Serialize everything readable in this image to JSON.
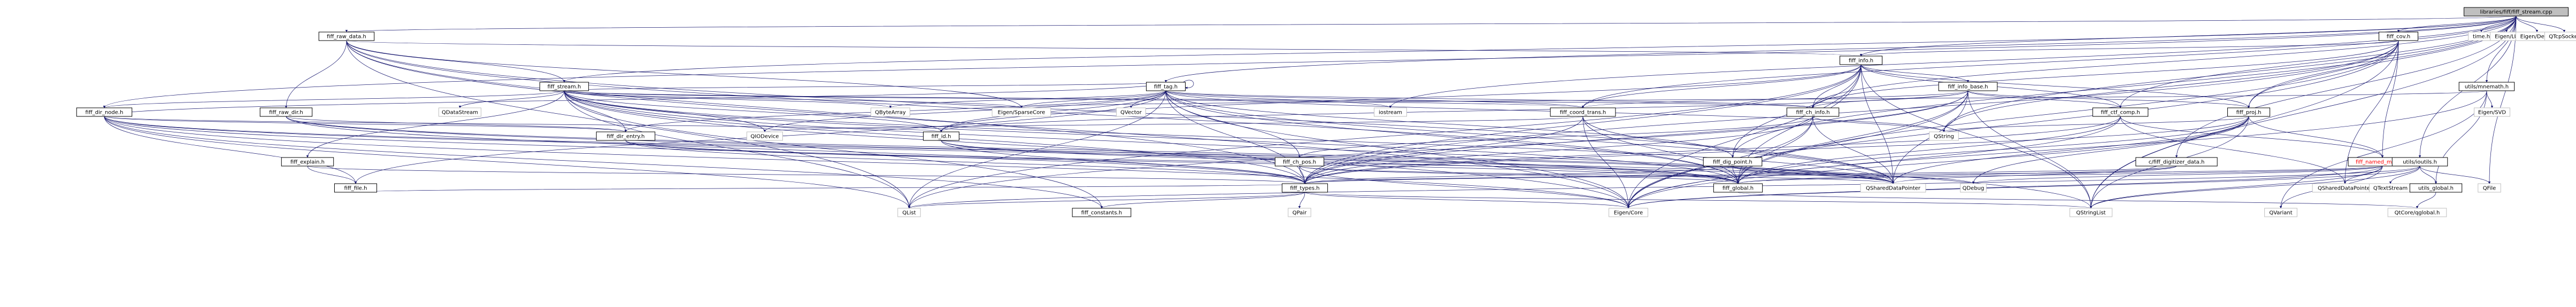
{
  "diagram": {
    "nodes": [
      {
        "id": "root",
        "label": "libraries/fiff/fiff_stream.cpp",
        "kind": "root"
      },
      {
        "id": "fiff_raw_data_h",
        "label": "fiff_raw_data.h",
        "kind": "inc"
      },
      {
        "id": "fiff_cov_h",
        "label": "fiff_cov.h",
        "kind": "inc"
      },
      {
        "id": "time_h",
        "label": "time.h",
        "kind": "ext"
      },
      {
        "id": "eigen_lu",
        "label": "Eigen/LU",
        "kind": "ext"
      },
      {
        "id": "eigen_dense",
        "label": "Eigen/Dense",
        "kind": "ext"
      },
      {
        "id": "qtcpsocket",
        "label": "QTcpSocket",
        "kind": "ext"
      },
      {
        "id": "fiff_info_h",
        "label": "fiff_info.h",
        "kind": "inc"
      },
      {
        "id": "fiff_stream_h",
        "label": "fiff_stream.h",
        "kind": "inc"
      },
      {
        "id": "fiff_tag_h",
        "label": "fiff_tag.h",
        "kind": "inc"
      },
      {
        "id": "fiff_info_base_h",
        "label": "fiff_info_base.h",
        "kind": "inc"
      },
      {
        "id": "utils_mnemath_h",
        "label": "utils/mnemath.h",
        "kind": "inc"
      },
      {
        "id": "fiff_dir_node_h",
        "label": "fiff_dir_node.h",
        "kind": "inc"
      },
      {
        "id": "fiff_raw_dir_h",
        "label": "fiff_raw_dir.h",
        "kind": "inc"
      },
      {
        "id": "qdatastream",
        "label": "QDataStream",
        "kind": "ext"
      },
      {
        "id": "qbytearray",
        "label": "QByteArray",
        "kind": "ext"
      },
      {
        "id": "eigen_sparsecore",
        "label": "Eigen/SparseCore",
        "kind": "ext"
      },
      {
        "id": "qvector",
        "label": "QVector",
        "kind": "ext"
      },
      {
        "id": "iostream",
        "label": "iostream",
        "kind": "ext"
      },
      {
        "id": "fiff_coord_trans_h",
        "label": "fiff_coord_trans.h",
        "kind": "inc"
      },
      {
        "id": "fiff_ch_info_h",
        "label": "fiff_ch_info.h",
        "kind": "inc"
      },
      {
        "id": "fiff_ctf_comp_h",
        "label": "fiff_ctf_comp.h",
        "kind": "inc"
      },
      {
        "id": "fiff_proj_h",
        "label": "fiff_proj.h",
        "kind": "inc"
      },
      {
        "id": "eigen_svd",
        "label": "Eigen/SVD",
        "kind": "ext"
      },
      {
        "id": "fiff_dir_entry_h",
        "label": "fiff_dir_entry.h",
        "kind": "inc"
      },
      {
        "id": "qiodevice",
        "label": "QIODevice",
        "kind": "ext"
      },
      {
        "id": "fiff_id_h",
        "label": "fiff_id.h",
        "kind": "inc"
      },
      {
        "id": "qstring",
        "label": "QString",
        "kind": "ext"
      },
      {
        "id": "fiff_ch_pos_h",
        "label": "fiff_ch_pos.h",
        "kind": "inc"
      },
      {
        "id": "fiff_dig_point_h",
        "label": "fiff_dig_point.h",
        "kind": "inc"
      },
      {
        "id": "fiff_named_matrix_h",
        "label": "fiff_named_matrix.h",
        "kind": "inc",
        "red": true
      },
      {
        "id": "c_fiff_digitizer_data_h",
        "label": "c/fiff_digitizer_data.h",
        "kind": "inc"
      },
      {
        "id": "utils_ioutils_h",
        "label": "utils/ioutils.h",
        "kind": "inc"
      },
      {
        "id": "fiff_explain_h",
        "label": "fiff_explain.h",
        "kind": "inc"
      },
      {
        "id": "fiff_file_h",
        "label": "fiff_file.h",
        "kind": "inc"
      },
      {
        "id": "fiff_types_h",
        "label": "fiff_types.h",
        "kind": "inc"
      },
      {
        "id": "fiff_global_h",
        "label": "fiff_global.h",
        "kind": "inc"
      },
      {
        "id": "qshareddatapointer",
        "label": "QSharedDataPointer",
        "kind": "ext"
      },
      {
        "id": "qshareddatapointer2",
        "label": "QSharedDataPointer",
        "kind": "ext"
      },
      {
        "id": "qdebug",
        "label": "QDebug",
        "kind": "ext"
      },
      {
        "id": "qtextstream",
        "label": "QTextStream",
        "kind": "ext"
      },
      {
        "id": "utils_global_h",
        "label": "utils_global.h",
        "kind": "inc"
      },
      {
        "id": "qfile",
        "label": "QFile",
        "kind": "ext"
      },
      {
        "id": "qlist",
        "label": "QList",
        "kind": "ext"
      },
      {
        "id": "qpair",
        "label": "QPair",
        "kind": "ext"
      },
      {
        "id": "fiff_constants_h",
        "label": "fiff_constants.h",
        "kind": "inc"
      },
      {
        "id": "eigen_core",
        "label": "Eigen/Core",
        "kind": "ext"
      },
      {
        "id": "qstringlist",
        "label": "QStringList",
        "kind": "ext"
      },
      {
        "id": "qvariant",
        "label": "QVariant",
        "kind": "ext"
      },
      {
        "id": "qtcoreglobal_h",
        "label": "QtCore/qglobal.h",
        "kind": "ext"
      }
    ],
    "edges": [
      [
        "root",
        "fiff_raw_data_h"
      ],
      [
        "root",
        "fiff_cov_h"
      ],
      [
        "root",
        "time_h"
      ],
      [
        "root",
        "eigen_lu"
      ],
      [
        "root",
        "eigen_dense"
      ],
      [
        "root",
        "qtcpsocket"
      ],
      [
        "root",
        "fiff_info_h"
      ],
      [
        "root",
        "fiff_stream_h"
      ],
      [
        "root",
        "fiff_tag_h"
      ],
      [
        "root",
        "utils_mnemath_h"
      ],
      [
        "root",
        "fiff_dir_node_h"
      ],
      [
        "root",
        "iostream"
      ],
      [
        "root",
        "fiff_coord_trans_h"
      ],
      [
        "root",
        "fiff_ch_info_h"
      ],
      [
        "root",
        "fiff_ctf_comp_h"
      ],
      [
        "root",
        "fiff_proj_h"
      ],
      [
        "root",
        "utils_ioutils_h"
      ],
      [
        "root",
        "c_fiff_digitizer_data_h"
      ],
      [
        "root",
        "fiff_dig_point_h"
      ],
      [
        "root",
        "qstring"
      ],
      [
        "root",
        "qfile"
      ],
      [
        "root",
        "qstringlist"
      ],
      [
        "fiff_raw_data_h",
        "fiff_info_h"
      ],
      [
        "fiff_raw_data_h",
        "fiff_stream_h"
      ],
      [
        "fiff_raw_data_h",
        "fiff_raw_dir_h"
      ],
      [
        "fiff_raw_data_h",
        "fiff_types_h"
      ],
      [
        "fiff_raw_data_h",
        "fiff_global_h"
      ],
      [
        "fiff_raw_data_h",
        "qlist"
      ],
      [
        "fiff_raw_data_h",
        "eigen_core"
      ],
      [
        "fiff_raw_data_h",
        "qshareddatapointer"
      ],
      [
        "fiff_raw_data_h",
        "eigen_sparsecore"
      ],
      [
        "fiff_cov_h",
        "fiff_info_h"
      ],
      [
        "fiff_cov_h",
        "fiff_proj_h"
      ],
      [
        "fiff_cov_h",
        "fiff_types_h"
      ],
      [
        "fiff_cov_h",
        "fiff_global_h"
      ],
      [
        "fiff_cov_h",
        "fiff_named_matrix_h"
      ],
      [
        "fiff_cov_h",
        "eigen_core"
      ],
      [
        "fiff_cov_h",
        "qstringlist"
      ],
      [
        "fiff_cov_h",
        "qshareddatapointer2"
      ],
      [
        "fiff_cov_h",
        "qstring"
      ],
      [
        "fiff_cov_h",
        "fiff_ch_info_h"
      ],
      [
        "fiff_info_h",
        "fiff_info_base_h"
      ],
      [
        "fiff_info_h",
        "fiff_coord_trans_h"
      ],
      [
        "fiff_info_h",
        "fiff_ch_info_h"
      ],
      [
        "fiff_info_h",
        "fiff_ctf_comp_h"
      ],
      [
        "fiff_info_h",
        "fiff_proj_h"
      ],
      [
        "fiff_info_h",
        "fiff_dig_point_h"
      ],
      [
        "fiff_info_h",
        "fiff_id_h"
      ],
      [
        "fiff_info_h",
        "fiff_types_h"
      ],
      [
        "fiff_info_h",
        "fiff_global_h"
      ],
      [
        "fiff_info_h",
        "qstringlist"
      ],
      [
        "fiff_info_h",
        "qshareddatapointer"
      ],
      [
        "fiff_info_h",
        "eigen_core"
      ],
      [
        "fiff_info_h",
        "qlist"
      ],
      [
        "fiff_stream_h",
        "fiff_tag_h"
      ],
      [
        "fiff_stream_h",
        "fiff_dir_node_h"
      ],
      [
        "fiff_stream_h",
        "fiff_dir_entry_h"
      ],
      [
        "fiff_stream_h",
        "fiff_id_h"
      ],
      [
        "fiff_stream_h",
        "fiff_types_h"
      ],
      [
        "fiff_stream_h",
        "fiff_global_h"
      ],
      [
        "fiff_stream_h",
        "qdatastream"
      ],
      [
        "fiff_stream_h",
        "qbytearray"
      ],
      [
        "fiff_stream_h",
        "qiodevice"
      ],
      [
        "fiff_stream_h",
        "eigen_core"
      ],
      [
        "fiff_stream_h",
        "eigen_sparsecore"
      ],
      [
        "fiff_stream_h",
        "qlist"
      ],
      [
        "fiff_stream_h",
        "qstringlist"
      ],
      [
        "fiff_stream_h",
        "qshareddatapointer"
      ],
      [
        "fiff_stream_h",
        "fiff_coord_trans_h"
      ],
      [
        "fiff_stream_h",
        "fiff_ch_info_h"
      ],
      [
        "fiff_stream_h",
        "fiff_explain_h"
      ],
      [
        "fiff_stream_h",
        "fiff_constants_h"
      ],
      [
        "fiff_tag_h",
        "fiff_tag_h"
      ],
      [
        "fiff_tag_h",
        "fiff_coord_trans_h"
      ],
      [
        "fiff_tag_h",
        "fiff_ch_info_h"
      ],
      [
        "fiff_tag_h",
        "fiff_dig_point_h"
      ],
      [
        "fiff_tag_h",
        "fiff_id_h"
      ],
      [
        "fiff_tag_h",
        "fiff_dir_entry_h"
      ],
      [
        "fiff_tag_h",
        "fiff_file_h"
      ],
      [
        "fiff_tag_h",
        "fiff_types_h"
      ],
      [
        "fiff_tag_h",
        "fiff_global_h"
      ],
      [
        "fiff_tag_h",
        "fiff_ch_pos_h"
      ],
      [
        "fiff_tag_h",
        "qbytearray"
      ],
      [
        "fiff_tag_h",
        "qvector"
      ],
      [
        "fiff_tag_h",
        "qiodevice"
      ],
      [
        "fiff_tag_h",
        "eigen_sparsecore"
      ],
      [
        "fiff_tag_h",
        "eigen_core"
      ],
      [
        "fiff_tag_h",
        "qlist"
      ],
      [
        "fiff_tag_h",
        "iostream"
      ],
      [
        "fiff_tag_h",
        "qstring"
      ],
      [
        "fiff_tag_h",
        "qshareddatapointer"
      ],
      [
        "fiff_info_base_h",
        "fiff_coord_trans_h"
      ],
      [
        "fiff_info_base_h",
        "fiff_ch_info_h"
      ],
      [
        "fiff_info_base_h",
        "fiff_id_h"
      ],
      [
        "fiff_info_base_h",
        "fiff_types_h"
      ],
      [
        "fiff_info_base_h",
        "fiff_global_h"
      ],
      [
        "fiff_info_base_h",
        "qstringlist"
      ],
      [
        "fiff_info_base_h",
        "qshareddatapointer"
      ],
      [
        "fiff_info_base_h",
        "eigen_core"
      ],
      [
        "fiff_info_base_h",
        "qlist"
      ],
      [
        "fiff_info_base_h",
        "fiff_ctf_comp_h"
      ],
      [
        "fiff_info_base_h",
        "fiff_proj_h"
      ],
      [
        "utils_mnemath_h",
        "utils_global_h"
      ],
      [
        "utils_mnemath_h",
        "eigen_svd"
      ],
      [
        "utils_mnemath_h",
        "eigen_core"
      ],
      [
        "utils_mnemath_h",
        "qvariant"
      ],
      [
        "utils_mnemath_h",
        "eigen_sparsecore"
      ],
      [
        "fiff_dir_node_h",
        "fiff_dir_entry_h"
      ],
      [
        "fiff_dir_node_h",
        "fiff_id_h"
      ],
      [
        "fiff_dir_node_h",
        "fiff_tag_h"
      ],
      [
        "fiff_dir_node_h",
        "fiff_types_h"
      ],
      [
        "fiff_dir_node_h",
        "fiff_global_h"
      ],
      [
        "fiff_dir_node_h",
        "qlist"
      ],
      [
        "fiff_dir_node_h",
        "eigen_core"
      ],
      [
        "fiff_dir_node_h",
        "qshareddatapointer"
      ],
      [
        "fiff_dir_node_h",
        "fiff_constants_h"
      ],
      [
        "fiff_dir_node_h",
        "fiff_file_h"
      ],
      [
        "fiff_raw_dir_h",
        "fiff_types_h"
      ],
      [
        "fiff_raw_dir_h",
        "fiff_global_h"
      ],
      [
        "fiff_raw_dir_h",
        "fiff_dir_entry_h"
      ],
      [
        "fiff_raw_dir_h",
        "qshareddatapointer"
      ],
      [
        "fiff_coord_trans_h",
        "fiff_types_h"
      ],
      [
        "fiff_coord_trans_h",
        "fiff_global_h"
      ],
      [
        "fiff_coord_trans_h",
        "qiodevice"
      ],
      [
        "fiff_coord_trans_h",
        "eigen_core"
      ],
      [
        "fiff_coord_trans_h",
        "qshareddatapointer"
      ],
      [
        "fiff_ch_info_h",
        "fiff_ch_pos_h"
      ],
      [
        "fiff_ch_info_h",
        "fiff_types_h"
      ],
      [
        "fiff_ch_info_h",
        "fiff_global_h"
      ],
      [
        "fiff_ch_info_h",
        "qstring"
      ],
      [
        "fiff_ch_info_h",
        "eigen_core"
      ],
      [
        "fiff_ch_info_h",
        "qshareddatapointer"
      ],
      [
        "fiff_ctf_comp_h",
        "fiff_named_matrix_h"
      ],
      [
        "fiff_ctf_comp_h",
        "fiff_types_h"
      ],
      [
        "fiff_ctf_comp_h",
        "fiff_global_h"
      ],
      [
        "fiff_ctf_comp_h",
        "qshareddatapointer2"
      ],
      [
        "fiff_ctf_comp_h",
        "eigen_core"
      ],
      [
        "fiff_proj_h",
        "fiff_named_matrix_h"
      ],
      [
        "fiff_proj_h",
        "fiff_types_h"
      ],
      [
        "fiff_proj_h",
        "fiff_global_h"
      ],
      [
        "fiff_proj_h",
        "qshareddatapointer"
      ],
      [
        "fiff_proj_h",
        "eigen_core"
      ],
      [
        "fiff_proj_h",
        "qdebug"
      ],
      [
        "fiff_proj_h",
        "qstring"
      ],
      [
        "fiff_proj_h",
        "qstringlist"
      ],
      [
        "fiff_dir_entry_h",
        "fiff_types_h"
      ],
      [
        "fiff_dir_entry_h",
        "fiff_global_h"
      ],
      [
        "fiff_dir_entry_h",
        "qshareddatapointer"
      ],
      [
        "fiff_id_h",
        "fiff_types_h"
      ],
      [
        "fiff_id_h",
        "fiff_global_h"
      ],
      [
        "fiff_id_h",
        "qshareddatapointer"
      ],
      [
        "fiff_ch_pos_h",
        "fiff_types_h"
      ],
      [
        "fiff_ch_pos_h",
        "fiff_global_h"
      ],
      [
        "fiff_ch_pos_h",
        "eigen_core"
      ],
      [
        "fiff_ch_pos_h",
        "qshareddatapointer"
      ],
      [
        "fiff_dig_point_h",
        "fiff_types_h"
      ],
      [
        "fiff_dig_point_h",
        "fiff_global_h"
      ],
      [
        "fiff_dig_point_h",
        "qshareddatapointer"
      ],
      [
        "fiff_dig_point_h",
        "qdebug"
      ],
      [
        "fiff_named_matrix_h",
        "fiff_types_h"
      ],
      [
        "fiff_named_matrix_h",
        "fiff_global_h"
      ],
      [
        "fiff_named_matrix_h",
        "qstringlist"
      ],
      [
        "fiff_named_matrix_h",
        "eigen_core"
      ],
      [
        "fiff_named_matrix_h",
        "qshareddatapointer2"
      ],
      [
        "fiff_named_matrix_h",
        "qdebug"
      ],
      [
        "fiff_named_matrix_h",
        "qvariant"
      ],
      [
        "c_fiff_digitizer_data_h",
        "fiff_types_h"
      ],
      [
        "c_fiff_digitizer_data_h",
        "fiff_global_h"
      ],
      [
        "c_fiff_digitizer_data_h",
        "qshareddatapointer"
      ],
      [
        "utils_ioutils_h",
        "utils_global_h"
      ],
      [
        "utils_ioutils_h",
        "qtextstream"
      ],
      [
        "utils_ioutils_h",
        "qfile"
      ],
      [
        "utils_ioutils_h",
        "qstringlist"
      ],
      [
        "utils_ioutils_h",
        "eigen_core"
      ],
      [
        "utils_ioutils_h",
        "qlist"
      ],
      [
        "fiff_explain_h",
        "fiff_types_h"
      ],
      [
        "fiff_explain_h",
        "fiff_file_h"
      ],
      [
        "fiff_file_h",
        "fiff_types_h"
      ],
      [
        "fiff_types_h",
        "fiff_constants_h"
      ],
      [
        "fiff_types_h",
        "qpair"
      ],
      [
        "fiff_types_h",
        "eigen_core"
      ],
      [
        "fiff_types_h",
        "qlist"
      ],
      [
        "fiff_types_h",
        "qstringlist"
      ],
      [
        "fiff_global_h",
        "qtcoreglobal_h"
      ],
      [
        "utils_global_h",
        "qtcoreglobal_h"
      ]
    ]
  }
}
